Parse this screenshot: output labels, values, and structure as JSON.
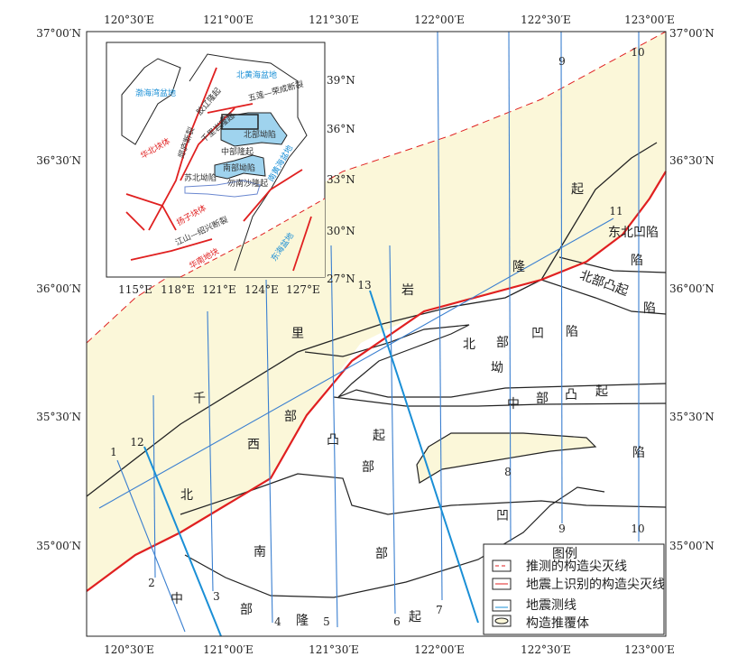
{
  "colors": {
    "sea_fill": "#fbf7d9",
    "survey_line": "#1a8fd6",
    "fault": "#e02020",
    "depression": "#9fd3ee",
    "boundary": "#222222"
  },
  "axes": {
    "top_lon": [
      "120°30′E",
      "121°00′E",
      "121°30′E",
      "122°00′E",
      "122°30′E",
      "123°00′E"
    ],
    "bottom_lon": [
      "120°30′E",
      "121°00′E",
      "121°30′E",
      "122°00′E",
      "122°30′E",
      "123°00′E"
    ],
    "left_lat": [
      "37°00′N",
      "36°30′N",
      "36°00′N",
      "35°30′N",
      "35°00′N"
    ],
    "right_lat": [
      "37°00′N",
      "36°30′N",
      "36°00′N",
      "35°30′N",
      "35°00′N"
    ]
  },
  "survey_lines": [
    "1",
    "2",
    "3",
    "4",
    "5",
    "6",
    "7",
    "8",
    "9",
    "9",
    "10",
    "10",
    "11",
    "12",
    "13"
  ],
  "regions": {
    "qianliyan": [
      "千",
      "里",
      "岩",
      "隆",
      "起"
    ],
    "north_depression": [
      "北",
      "部",
      "凹",
      "陷",
      "坳"
    ],
    "central_uplift": [
      "中",
      "部",
      "凸",
      "起"
    ],
    "west_uplift": [
      "西",
      "部",
      "凸",
      "起",
      "部"
    ],
    "south": [
      "北",
      "南",
      "中",
      "部",
      "隆",
      "部",
      "起",
      "凹",
      "陷"
    ],
    "northeast_depression": "东北凹陷",
    "northeast_chars": [
      "陷",
      "陷"
    ],
    "north_uplift": "北部凸起",
    "extra_chars": [
      "起"
    ]
  },
  "inset": {
    "lon_ticks": [
      "115°E",
      "118°E",
      "121°E",
      "124°E",
      "127°E"
    ],
    "lat_ticks": [
      "39°N",
      "36°N",
      "33°N",
      "30°N",
      "27°N"
    ],
    "labels_blue": [
      "渤海湾盆地",
      "北黄海盆地",
      "东海盆地",
      "南黄海盆地"
    ],
    "labels_red": [
      "华北块体",
      "扬子块体",
      "华南地块"
    ],
    "labels_dark": [
      "北部坳陷",
      "中部隆起",
      "南部坳陷",
      "苏北坳陷",
      "勿南沙隆起",
      "千里岩隆起",
      "胶辽隆起",
      "五莲—荣成断裂",
      "郯庐断裂",
      "江山—绍兴断裂"
    ]
  },
  "legend": {
    "title": "图例",
    "items": [
      "推测的构造尖灭线",
      "地震上识别的构造尖灭线",
      "地震测线",
      "构造推覆体"
    ]
  }
}
